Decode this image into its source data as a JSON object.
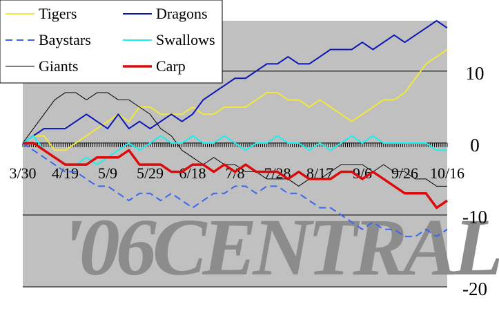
{
  "chart_data": {
    "type": "line",
    "watermark": "'06CENTRAL",
    "categories": [
      "3/30",
      null,
      null,
      null,
      "4/19",
      null,
      null,
      null,
      "5/9",
      null,
      null,
      null,
      "5/29",
      null,
      null,
      null,
      "6/18",
      null,
      null,
      null,
      "7/8",
      null,
      null,
      null,
      "7/28",
      null,
      null,
      null,
      "8/17",
      null,
      null,
      null,
      "9/6",
      null,
      null,
      null,
      "9/26",
      null,
      null,
      null,
      "10/16"
    ],
    "ylim": [
      -20,
      17
    ],
    "yticks": [
      10,
      0,
      -10,
      -20
    ],
    "grid": true,
    "background": "#c0c0c0",
    "legend": "top-left",
    "series": [
      {
        "name": "Tigers",
        "color": "#f2e83a",
        "width": 2,
        "values": [
          0,
          1,
          1,
          -1,
          -1,
          0,
          1,
          2,
          3,
          4,
          3,
          5,
          5,
          4,
          4,
          4,
          5,
          4,
          4,
          5,
          5,
          5,
          6,
          7,
          7,
          6,
          6,
          5,
          6,
          5,
          4,
          3,
          4,
          5,
          6,
          6,
          7,
          9,
          11,
          12,
          13
        ]
      },
      {
        "name": "Baystars",
        "color": "#3a66ee",
        "width": 2,
        "dashed": true,
        "values": [
          0,
          -1,
          -2,
          -3,
          -4,
          -4,
          -5,
          -6,
          -6,
          -7,
          -8,
          -7,
          -7,
          -8,
          -7,
          -8,
          -9,
          -8,
          -7,
          -7,
          -6,
          -6,
          -7,
          -6,
          -6,
          -7,
          -7,
          -8,
          -9,
          -9,
          -10,
          -11,
          -12,
          -11,
          -12,
          -12,
          -13,
          -13,
          -12,
          -13,
          -12
        ]
      },
      {
        "name": "Giants",
        "color": "#000000",
        "width": 1,
        "values": [
          0,
          2,
          4,
          6,
          7,
          7,
          6,
          7,
          7,
          6,
          6,
          5,
          4,
          2,
          1,
          -1,
          -2,
          -3,
          -2,
          -3,
          -3,
          -4,
          -4,
          -5,
          -5,
          -5,
          -6,
          -5,
          -5,
          -4,
          -3,
          -3,
          -3,
          -4,
          -3,
          -4,
          -4,
          -5,
          -5,
          -6,
          -6
        ]
      },
      {
        "name": "Dragons",
        "color": "#0a14b4",
        "width": 2,
        "values": [
          0,
          1,
          2,
          2,
          2,
          3,
          4,
          3,
          2,
          4,
          2,
          3,
          2,
          3,
          4,
          3,
          4,
          6,
          7,
          8,
          9,
          9,
          10,
          11,
          11,
          12,
          11,
          11,
          12,
          13,
          13,
          13,
          14,
          13,
          14,
          15,
          14,
          15,
          16,
          17,
          16
        ]
      },
      {
        "name": "Swallows",
        "color": "#19f0f0",
        "width": 2,
        "values": [
          0,
          1,
          -1,
          -2,
          -3,
          -3,
          -2,
          -3,
          -2,
          -1,
          0,
          -1,
          0,
          1,
          0,
          0,
          1,
          0,
          0,
          1,
          0,
          -1,
          0,
          0,
          1,
          0,
          0,
          -1,
          0,
          -1,
          0,
          1,
          0,
          1,
          0,
          0,
          0,
          0,
          0,
          -1,
          -1
        ]
      },
      {
        "name": "Carp",
        "color": "#dc0a0a",
        "width": 3.5,
        "values": [
          0,
          0,
          -1,
          -2,
          -3,
          -3,
          -3,
          -2,
          -2,
          -2,
          -1,
          -3,
          -3,
          -3,
          -4,
          -4,
          -3,
          -3,
          -4,
          -3,
          -4,
          -3,
          -4,
          -4,
          -4,
          -5,
          -4,
          -5,
          -5,
          -5,
          -4,
          -4,
          -5,
          -4,
          -5,
          -6,
          -7,
          -7,
          -7,
          -9,
          -8
        ]
      }
    ]
  }
}
